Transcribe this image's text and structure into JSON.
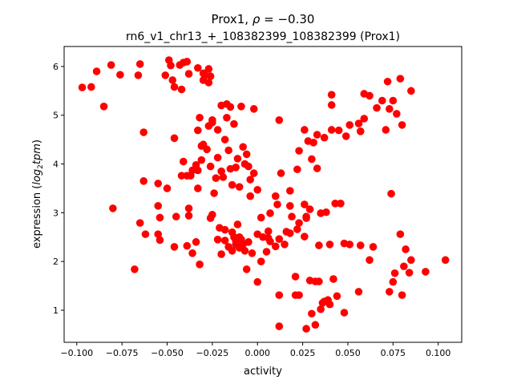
{
  "chart_data": {
    "type": "scatter",
    "title_line1_prefix": "Prox1, ",
    "title_rho_symbol": "ρ",
    "title_rho_value": " = −0.30",
    "title_line2": "rn6_v1_chr13_+_108382399_108382399 (Prox1)",
    "xlabel": "activity",
    "ylabel_prefix": "expression (",
    "ylabel_log": "log",
    "ylabel_sub": "2",
    "ylabel_tpm": "tpm",
    "ylabel_suffix": ")",
    "xlim": [
      -0.107,
      0.113
    ],
    "ylim": [
      0.342,
      6.41
    ],
    "xticks": [
      -0.1,
      -0.075,
      -0.05,
      -0.025,
      0.0,
      0.025,
      0.05,
      0.075,
      0.1
    ],
    "xtick_labels": [
      "−0.100",
      "−0.075",
      "−0.050",
      "−0.025",
      "0.000",
      "0.025",
      "0.050",
      "0.075",
      "0.100"
    ],
    "yticks": [
      1,
      2,
      3,
      4,
      5,
      6
    ],
    "ytick_labels": [
      "1",
      "2",
      "3",
      "4",
      "5",
      "6"
    ],
    "marker_color": "#ff0000",
    "grid": false,
    "points": [
      [
        -0.097,
        5.57
      ],
      [
        -0.092,
        5.58
      ],
      [
        -0.089,
        5.9
      ],
      [
        -0.085,
        5.18
      ],
      [
        -0.081,
        6.03
      ],
      [
        -0.076,
        5.83
      ],
      [
        -0.08,
        3.09
      ],
      [
        -0.066,
        5.82
      ],
      [
        -0.065,
        6.05
      ],
      [
        -0.063,
        4.65
      ],
      [
        -0.051,
        5.82
      ],
      [
        -0.049,
        6.13
      ],
      [
        -0.048,
        6.02
      ],
      [
        -0.047,
        5.72
      ],
      [
        -0.046,
        5.58
      ],
      [
        -0.043,
        6.03
      ],
      [
        -0.041,
        6.08
      ],
      [
        -0.039,
        6.1
      ],
      [
        -0.038,
        5.85
      ],
      [
        -0.042,
        5.53
      ],
      [
        -0.033,
        5.97
      ],
      [
        -0.03,
        5.72
      ],
      [
        -0.029,
        5.82
      ],
      [
        -0.027,
        5.95
      ],
      [
        -0.026,
        5.8
      ],
      [
        -0.03,
        5.86
      ],
      [
        -0.027,
        5.67
      ],
      [
        -0.063,
        3.65
      ],
      [
        -0.046,
        4.53
      ],
      [
        -0.055,
        3.6
      ],
      [
        -0.05,
        3.5
      ],
      [
        -0.042,
        3.76
      ],
      [
        -0.039,
        3.76
      ],
      [
        -0.037,
        3.76
      ],
      [
        -0.041,
        4.05
      ],
      [
        -0.034,
        3.98
      ],
      [
        -0.033,
        3.87
      ],
      [
        -0.031,
        4.08
      ],
      [
        -0.033,
        4.69
      ],
      [
        -0.032,
        4.95
      ],
      [
        -0.031,
        4.37
      ],
      [
        -0.036,
        3.87
      ],
      [
        -0.033,
        3.5
      ],
      [
        -0.027,
        4.78
      ],
      [
        -0.025,
        4.85
      ],
      [
        -0.024,
        3.4
      ],
      [
        -0.022,
        4.13
      ],
      [
        -0.022,
        4.7
      ],
      [
        -0.02,
        5.2
      ],
      [
        -0.017,
        5.23
      ],
      [
        -0.015,
        5.17
      ],
      [
        -0.017,
        4.95
      ],
      [
        -0.013,
        4.82
      ],
      [
        -0.009,
        5.18
      ],
      [
        -0.002,
        5.13
      ],
      [
        -0.016,
        4.28
      ],
      [
        -0.012,
        3.93
      ],
      [
        -0.011,
        4.11
      ],
      [
        -0.006,
        4.2
      ],
      [
        -0.007,
        4.0
      ],
      [
        -0.014,
        3.57
      ],
      [
        -0.01,
        3.53
      ],
      [
        -0.004,
        3.34
      ],
      [
        -0.002,
        3.81
      ],
      [
        0.0,
        3.47
      ],
      [
        -0.004,
        3.68
      ],
      [
        -0.019,
        3.73
      ],
      [
        -0.023,
        3.71
      ],
      [
        -0.025,
        4.9
      ],
      [
        -0.028,
        4.3
      ],
      [
        -0.026,
        3.95
      ],
      [
        -0.02,
        3.85
      ],
      [
        -0.018,
        4.5
      ],
      [
        -0.015,
        3.9
      ],
      [
        -0.008,
        4.35
      ],
      [
        -0.005,
        3.95
      ],
      [
        -0.03,
        4.4
      ],
      [
        -0.065,
        2.79
      ],
      [
        -0.062,
        2.56
      ],
      [
        -0.055,
        2.56
      ],
      [
        -0.054,
        2.9
      ],
      [
        -0.054,
        2.44
      ],
      [
        -0.055,
        3.14
      ],
      [
        -0.045,
        2.92
      ],
      [
        -0.046,
        2.3
      ],
      [
        -0.038,
        2.94
      ],
      [
        -0.039,
        2.32
      ],
      [
        -0.036,
        2.17
      ],
      [
        -0.032,
        1.94
      ],
      [
        -0.068,
        1.84
      ],
      [
        -0.038,
        3.09
      ],
      [
        -0.034,
        2.4
      ],
      [
        -0.026,
        2.89
      ],
      [
        -0.025,
        2.96
      ],
      [
        -0.021,
        2.69
      ],
      [
        -0.018,
        2.43
      ],
      [
        -0.014,
        2.6
      ],
      [
        -0.011,
        2.76
      ],
      [
        -0.01,
        2.5
      ],
      [
        -0.008,
        2.35
      ],
      [
        -0.012,
        2.43
      ],
      [
        -0.006,
        1.84
      ],
      [
        -0.003,
        2.17
      ],
      [
        0.0,
        2.56
      ],
      [
        0.0,
        1.58
      ],
      [
        0.002,
        2.9
      ],
      [
        -0.022,
        2.45
      ],
      [
        -0.016,
        2.3
      ],
      [
        -0.007,
        2.22
      ],
      [
        -0.014,
        2.22
      ],
      [
        -0.012,
        2.35
      ],
      [
        -0.009,
        2.45
      ],
      [
        -0.013,
        2.5
      ],
      [
        -0.01,
        2.28
      ],
      [
        -0.018,
        2.65
      ],
      [
        -0.005,
        2.4
      ],
      [
        -0.02,
        2.15
      ],
      [
        0.012,
        4.9
      ],
      [
        0.023,
        4.27
      ],
      [
        0.026,
        4.7
      ],
      [
        0.03,
        4.1
      ],
      [
        0.028,
        4.47
      ],
      [
        0.031,
        4.44
      ],
      [
        0.033,
        4.6
      ],
      [
        0.037,
        4.54
      ],
      [
        0.041,
        4.7
      ],
      [
        0.045,
        4.69
      ],
      [
        0.049,
        4.57
      ],
      [
        0.051,
        4.8
      ],
      [
        0.056,
        4.83
      ],
      [
        0.057,
        4.67
      ],
      [
        0.059,
        4.93
      ],
      [
        0.059,
        5.44
      ],
      [
        0.062,
        5.4
      ],
      [
        0.066,
        5.15
      ],
      [
        0.069,
        5.3
      ],
      [
        0.072,
        5.69
      ],
      [
        0.079,
        5.75
      ],
      [
        0.085,
        5.5
      ],
      [
        0.073,
        5.13
      ],
      [
        0.075,
        5.3
      ],
      [
        0.077,
        5.03
      ],
      [
        0.08,
        4.8
      ],
      [
        0.071,
        4.7
      ],
      [
        0.041,
        5.21
      ],
      [
        0.041,
        5.42
      ],
      [
        0.033,
        3.91
      ],
      [
        0.022,
        3.89
      ],
      [
        0.013,
        3.81
      ],
      [
        0.018,
        3.45
      ],
      [
        0.01,
        3.34
      ],
      [
        0.011,
        3.17
      ],
      [
        0.018,
        3.14
      ],
      [
        0.019,
        2.92
      ],
      [
        0.026,
        3.17
      ],
      [
        0.029,
        3.07
      ],
      [
        0.027,
        2.89
      ],
      [
        0.023,
        2.79
      ],
      [
        0.035,
        2.99
      ],
      [
        0.038,
        3.01
      ],
      [
        0.043,
        3.19
      ],
      [
        0.046,
        3.19
      ],
      [
        0.074,
        3.39
      ],
      [
        0.007,
        2.99
      ],
      [
        0.006,
        2.62
      ],
      [
        0.016,
        2.61
      ],
      [
        0.012,
        2.46
      ],
      [
        0.018,
        2.58
      ],
      [
        0.026,
        2.51
      ],
      [
        0.027,
        2.92
      ],
      [
        0.007,
        2.41
      ],
      [
        0.01,
        2.31
      ],
      [
        0.015,
        2.35
      ],
      [
        0.006,
        2.48
      ],
      [
        0.022,
        2.66
      ],
      [
        0.034,
        2.33
      ],
      [
        0.04,
        2.35
      ],
      [
        0.048,
        2.37
      ],
      [
        0.051,
        2.35
      ],
      [
        0.057,
        2.33
      ],
      [
        0.064,
        2.3
      ],
      [
        0.079,
        2.56
      ],
      [
        0.062,
        2.03
      ],
      [
        0.104,
        2.03
      ],
      [
        0.073,
        1.38
      ],
      [
        0.075,
        1.58
      ],
      [
        0.08,
        1.31
      ],
      [
        0.076,
        1.76
      ],
      [
        0.081,
        1.9
      ],
      [
        0.084,
        1.77
      ],
      [
        0.085,
        2.03
      ],
      [
        0.082,
        2.25
      ],
      [
        0.093,
        1.79
      ],
      [
        0.021,
        1.69
      ],
      [
        0.021,
        1.31
      ],
      [
        0.023,
        1.31
      ],
      [
        0.012,
        1.31
      ],
      [
        0.012,
        0.67
      ],
      [
        0.027,
        0.62
      ],
      [
        0.032,
        0.7
      ],
      [
        0.03,
        0.93
      ],
      [
        0.036,
        1.15
      ],
      [
        0.037,
        1.18
      ],
      [
        0.039,
        1.21
      ],
      [
        0.042,
        1.64
      ],
      [
        0.044,
        1.29
      ],
      [
        0.048,
        0.95
      ],
      [
        0.056,
        1.38
      ],
      [
        0.032,
        1.59
      ],
      [
        0.029,
        1.61
      ],
      [
        0.034,
        1.59
      ],
      [
        0.035,
        1.02
      ],
      [
        0.04,
        1.12
      ],
      [
        0.003,
        2.5
      ],
      [
        0.005,
        2.2
      ],
      [
        0.002,
        2.0
      ]
    ]
  }
}
